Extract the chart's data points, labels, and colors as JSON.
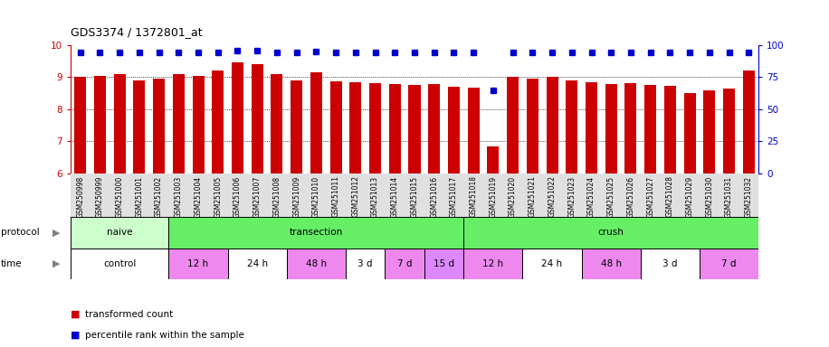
{
  "title": "GDS3374 / 1372801_at",
  "samples": [
    "GSM250998",
    "GSM250999",
    "GSM251000",
    "GSM251001",
    "GSM251002",
    "GSM251003",
    "GSM251004",
    "GSM251005",
    "GSM251006",
    "GSM251007",
    "GSM251008",
    "GSM251009",
    "GSM251010",
    "GSM251011",
    "GSM251012",
    "GSM251013",
    "GSM251014",
    "GSM251015",
    "GSM251016",
    "GSM251017",
    "GSM251018",
    "GSM251019",
    "GSM251020",
    "GSM251021",
    "GSM251022",
    "GSM251023",
    "GSM251024",
    "GSM251025",
    "GSM251026",
    "GSM251027",
    "GSM251028",
    "GSM251029",
    "GSM251030",
    "GSM251031",
    "GSM251032"
  ],
  "transformed_count": [
    9.0,
    9.05,
    9.1,
    8.9,
    8.95,
    9.1,
    9.05,
    9.2,
    9.45,
    9.4,
    9.1,
    8.9,
    9.15,
    8.88,
    8.85,
    8.82,
    8.78,
    8.75,
    8.8,
    8.7,
    8.68,
    6.85,
    9.0,
    8.95,
    9.0,
    8.9,
    8.85,
    8.78,
    8.82,
    8.75,
    8.72,
    8.5,
    8.6,
    8.65,
    9.2
  ],
  "percentile_rank": [
    94,
    94,
    94,
    94,
    94,
    94,
    94,
    94,
    96,
    96,
    94,
    94,
    95,
    94,
    94,
    94,
    94,
    94,
    94,
    94,
    94,
    65,
    94,
    94,
    94,
    94,
    94,
    94,
    94,
    94,
    94,
    94,
    94,
    94,
    94
  ],
  "ylim_left": [
    6,
    10
  ],
  "ylim_right": [
    0,
    100
  ],
  "yticks_left": [
    6,
    7,
    8,
    9,
    10
  ],
  "yticks_right": [
    0,
    25,
    50,
    75,
    100
  ],
  "bar_color": "#cc0000",
  "marker_color": "#0000cc",
  "bg_color": "#ffffff",
  "protocol_groups": [
    {
      "label": "naive",
      "start": 0,
      "end": 4,
      "color": "#ccffcc"
    },
    {
      "label": "transection",
      "start": 5,
      "end": 19,
      "color": "#66ee66"
    },
    {
      "label": "crush",
      "start": 20,
      "end": 34,
      "color": "#66ee66"
    }
  ],
  "time_groups": [
    {
      "label": "control",
      "start": 0,
      "end": 4,
      "color": "#ffffff"
    },
    {
      "label": "12 h",
      "start": 5,
      "end": 7,
      "color": "#ee88ee"
    },
    {
      "label": "24 h",
      "start": 8,
      "end": 10,
      "color": "#ffffff"
    },
    {
      "label": "48 h",
      "start": 11,
      "end": 13,
      "color": "#ee88ee"
    },
    {
      "label": "3 d",
      "start": 14,
      "end": 15,
      "color": "#ffffff"
    },
    {
      "label": "7 d",
      "start": 16,
      "end": 17,
      "color": "#ee88ee"
    },
    {
      "label": "15 d",
      "start": 18,
      "end": 19,
      "color": "#dd88ff"
    },
    {
      "label": "12 h",
      "start": 20,
      "end": 22,
      "color": "#ee88ee"
    },
    {
      "label": "24 h",
      "start": 23,
      "end": 25,
      "color": "#ffffff"
    },
    {
      "label": "48 h",
      "start": 26,
      "end": 28,
      "color": "#ee88ee"
    },
    {
      "label": "3 d",
      "start": 29,
      "end": 31,
      "color": "#ffffff"
    },
    {
      "label": "7 d",
      "start": 32,
      "end": 34,
      "color": "#ee88ee"
    }
  ]
}
